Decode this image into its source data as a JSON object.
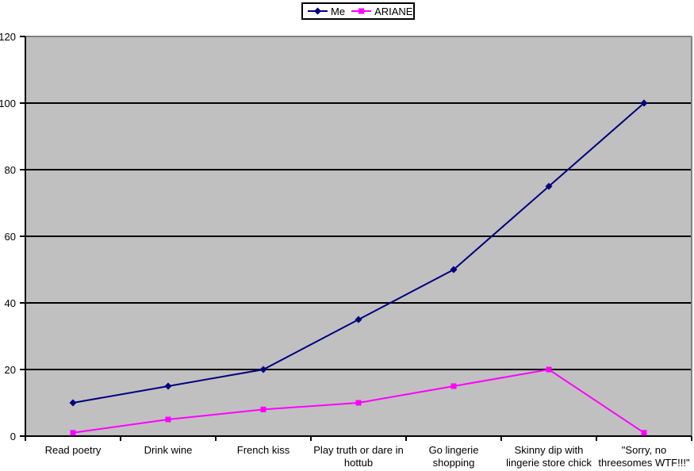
{
  "chart_data": {
    "type": "line",
    "title": "",
    "xlabel": "",
    "ylabel": "",
    "categories": [
      [
        "Read poetry"
      ],
      [
        "Drink wine"
      ],
      [
        "French kiss"
      ],
      [
        "Play truth or dare in",
        "hottub"
      ],
      [
        "Go lingerie",
        "shopping"
      ],
      [
        "Skinny dip with",
        "lingerie store chick"
      ],
      [
        "\"Sorry, no",
        "threesomes WTF!!!\""
      ]
    ],
    "series": [
      {
        "name": "Me",
        "values": [
          10,
          15,
          20,
          35,
          50,
          75,
          100
        ],
        "color": "#000080",
        "marker": "diamond"
      },
      {
        "name": "ARIANE",
        "values": [
          1,
          5,
          8,
          10,
          15,
          20,
          1
        ],
        "color": "#FF00FF",
        "marker": "square"
      }
    ],
    "ylim": [
      0,
      120
    ],
    "yticks": [
      0,
      20,
      40,
      60,
      80,
      100,
      120
    ],
    "grid": true,
    "legend_position": "top-center",
    "colors": {
      "plot_background": "#C0C0C0",
      "gridline": "#000000",
      "plot_border": "#808080",
      "axis": "#000000",
      "text": "#000000",
      "page_background": "#FFFFFF"
    }
  }
}
